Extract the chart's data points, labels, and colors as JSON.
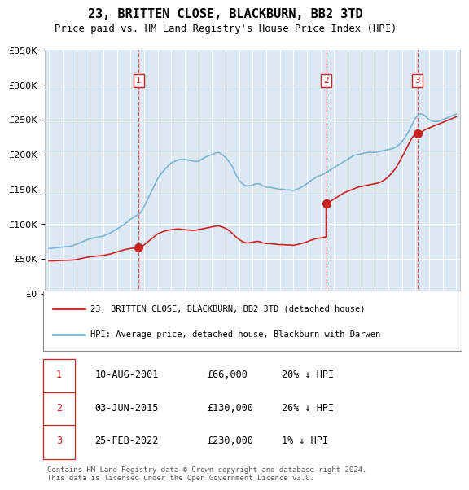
{
  "title": "23, BRITTEN CLOSE, BLACKBURN, BB2 3TD",
  "subtitle": "Price paid vs. HM Land Registry's House Price Index (HPI)",
  "plot_bg_color": "#dce9f5",
  "x_start_year": 1995,
  "x_end_year": 2025,
  "ylim": [
    0,
    350000
  ],
  "legend_red": "23, BRITTEN CLOSE, BLACKBURN, BB2 3TD (detached house)",
  "legend_blue": "HPI: Average price, detached house, Blackburn with Darwen",
  "table_data": [
    [
      "1",
      "10-AUG-2001",
      "£66,000",
      "20% ↓ HPI"
    ],
    [
      "2",
      "03-JUN-2015",
      "£130,000",
      "26% ↓ HPI"
    ],
    [
      "3",
      "25-FEB-2022",
      "£230,000",
      "1% ↓ HPI"
    ]
  ],
  "footer": "Contains HM Land Registry data © Crown copyright and database right 2024.\nThis data is licensed under the Open Government Licence v3.0.",
  "sale_year_nums": [
    2001.6138,
    2015.4192,
    2022.1452
  ],
  "sale_prices": [
    66000,
    130000,
    230000
  ],
  "sale_labels": [
    "1",
    "2",
    "3"
  ],
  "hpi_years": [
    1995.0,
    1995.25,
    1995.5,
    1995.75,
    1996.0,
    1996.25,
    1996.5,
    1996.75,
    1997.0,
    1997.25,
    1997.5,
    1997.75,
    1998.0,
    1998.25,
    1998.5,
    1998.75,
    1999.0,
    1999.25,
    1999.5,
    1999.75,
    2000.0,
    2000.25,
    2000.5,
    2000.75,
    2001.0,
    2001.25,
    2001.5,
    2001.75,
    2002.0,
    2002.25,
    2002.5,
    2002.75,
    2003.0,
    2003.25,
    2003.5,
    2003.75,
    2004.0,
    2004.25,
    2004.5,
    2004.75,
    2005.0,
    2005.25,
    2005.5,
    2005.75,
    2006.0,
    2006.25,
    2006.5,
    2006.75,
    2007.0,
    2007.25,
    2007.5,
    2007.75,
    2008.0,
    2008.25,
    2008.5,
    2008.75,
    2009.0,
    2009.25,
    2009.5,
    2009.75,
    2010.0,
    2010.25,
    2010.5,
    2010.75,
    2011.0,
    2011.25,
    2011.5,
    2011.75,
    2012.0,
    2012.25,
    2012.5,
    2012.75,
    2013.0,
    2013.25,
    2013.5,
    2013.75,
    2014.0,
    2014.25,
    2014.5,
    2014.75,
    2015.0,
    2015.25,
    2015.5,
    2015.75,
    2016.0,
    2016.25,
    2016.5,
    2016.75,
    2017.0,
    2017.25,
    2017.5,
    2017.75,
    2018.0,
    2018.25,
    2018.5,
    2018.75,
    2019.0,
    2019.25,
    2019.5,
    2019.75,
    2020.0,
    2020.25,
    2020.5,
    2020.75,
    2021.0,
    2021.25,
    2021.5,
    2021.75,
    2022.0,
    2022.25,
    2022.5,
    2022.75,
    2023.0,
    2023.25,
    2023.5,
    2023.75,
    2024.0,
    2024.25,
    2024.5,
    2024.75,
    2025.0
  ],
  "hpi_values": [
    65000,
    65500,
    66000,
    66500,
    67000,
    67500,
    68000,
    69000,
    71000,
    73000,
    75000,
    77000,
    79000,
    80000,
    81000,
    82000,
    83000,
    85000,
    87000,
    90000,
    93000,
    96000,
    99000,
    103000,
    107000,
    110000,
    113000,
    116000,
    125000,
    135000,
    145000,
    155000,
    165000,
    172000,
    178000,
    183000,
    188000,
    190000,
    192000,
    193000,
    193000,
    192000,
    191000,
    190000,
    190000,
    193000,
    196000,
    198000,
    200000,
    202000,
    203000,
    200000,
    196000,
    190000,
    183000,
    172000,
    163000,
    158000,
    155000,
    155000,
    156000,
    158000,
    158000,
    155000,
    153000,
    153000,
    152000,
    151000,
    150000,
    150000,
    149000,
    149000,
    148000,
    150000,
    152000,
    155000,
    158000,
    162000,
    165000,
    168000,
    170000,
    172000,
    175000,
    178000,
    181000,
    184000,
    187000,
    190000,
    193000,
    196000,
    199000,
    200000,
    201000,
    202000,
    203000,
    203000,
    203000,
    204000,
    205000,
    206000,
    207000,
    208000,
    210000,
    213000,
    218000,
    225000,
    233000,
    243000,
    252000,
    258000,
    258000,
    255000,
    250000,
    248000,
    247000,
    248000,
    250000,
    252000,
    254000,
    256000,
    258000
  ],
  "red_years": [
    1995.0,
    1995.25,
    1995.5,
    1995.75,
    1996.0,
    1996.25,
    1996.5,
    1996.75,
    1997.0,
    1997.25,
    1997.5,
    1997.75,
    1998.0,
    1998.25,
    1998.5,
    1998.75,
    1999.0,
    1999.25,
    1999.5,
    1999.75,
    2000.0,
    2000.25,
    2000.5,
    2000.75,
    2001.0,
    2001.25,
    2001.5,
    2001.6138,
    2001.6138,
    2001.75,
    2002.0,
    2002.25,
    2002.5,
    2002.75,
    2003.0,
    2003.25,
    2003.5,
    2003.75,
    2004.0,
    2004.25,
    2004.5,
    2004.75,
    2005.0,
    2005.25,
    2005.5,
    2005.75,
    2006.0,
    2006.25,
    2006.5,
    2006.75,
    2007.0,
    2007.25,
    2007.5,
    2007.75,
    2008.0,
    2008.25,
    2008.5,
    2008.75,
    2009.0,
    2009.25,
    2009.5,
    2009.75,
    2010.0,
    2010.25,
    2010.5,
    2010.75,
    2011.0,
    2011.25,
    2011.5,
    2011.75,
    2012.0,
    2012.25,
    2012.5,
    2012.75,
    2013.0,
    2013.25,
    2013.5,
    2013.75,
    2014.0,
    2014.25,
    2014.5,
    2014.75,
    2015.0,
    2015.25,
    2015.4192,
    2015.4192,
    2015.5,
    2015.75,
    2016.0,
    2016.25,
    2016.5,
    2016.75,
    2017.0,
    2017.25,
    2017.5,
    2017.75,
    2018.0,
    2018.25,
    2018.5,
    2018.75,
    2019.0,
    2019.25,
    2019.5,
    2019.75,
    2020.0,
    2020.25,
    2020.5,
    2020.75,
    2021.0,
    2021.25,
    2021.5,
    2021.75,
    2022.0,
    2022.1452,
    2022.1452,
    2022.25,
    2022.5,
    2022.75,
    2023.0,
    2023.25,
    2023.5,
    2023.75,
    2024.0,
    2024.25,
    2024.5,
    2024.75,
    2025.0
  ],
  "red_values": [
    47000,
    47200,
    47400,
    47600,
    47800,
    48000,
    48200,
    48400,
    49000,
    50000,
    51000,
    52000,
    53000,
    53500,
    54000,
    54500,
    55000,
    56000,
    57000,
    58500,
    60000,
    61500,
    63000,
    64000,
    65000,
    65500,
    66000,
    66000,
    66000,
    67000,
    70000,
    74000,
    78000,
    82000,
    86000,
    88000,
    90000,
    91000,
    92000,
    92500,
    93000,
    92500,
    92000,
    91500,
    91000,
    91000,
    92000,
    93000,
    94000,
    95000,
    96000,
    97000,
    97500,
    96000,
    94000,
    91000,
    87000,
    82000,
    78000,
    75000,
    73000,
    73000,
    74000,
    75000,
    75000,
    73000,
    72000,
    72000,
    71500,
    71000,
    70500,
    70500,
    70000,
    70000,
    69500,
    70500,
    71500,
    73000,
    74500,
    76500,
    78000,
    79500,
    80000,
    81000,
    82000,
    130000,
    131000,
    133000,
    136000,
    139000,
    142000,
    145000,
    147000,
    149000,
    151000,
    153000,
    154000,
    155000,
    156000,
    157000,
    158000,
    159000,
    161000,
    164000,
    168000,
    173000,
    179000,
    187000,
    196000,
    205000,
    215000,
    224000,
    230000,
    230000,
    230000,
    231000,
    233000,
    236000,
    238000,
    240000,
    242000,
    244000,
    246000,
    248000,
    250000,
    252000,
    254000
  ]
}
